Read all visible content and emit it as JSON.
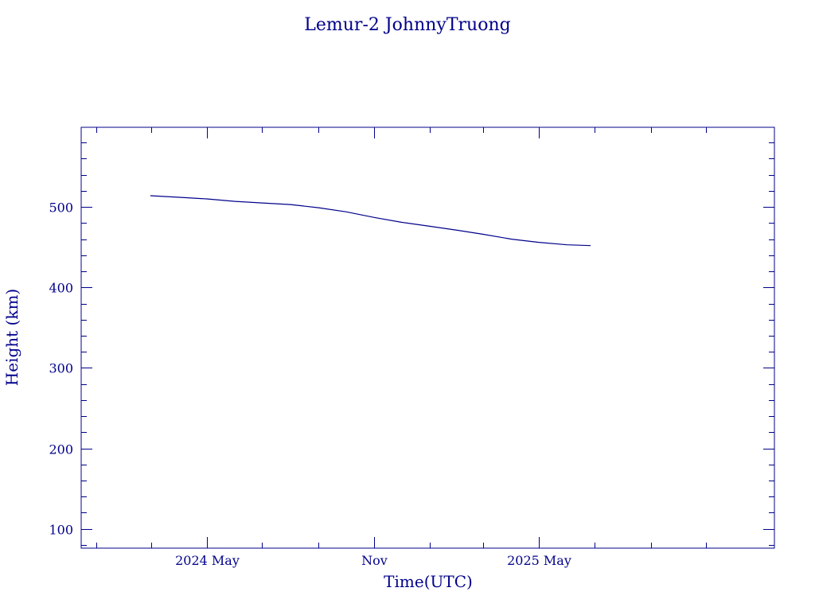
{
  "chart_data": {
    "type": "line",
    "title": "Lemur-2 JohnnyTruong",
    "xlabel": "Time(UTC)",
    "ylabel": "Height (km)",
    "x_axis": {
      "kind": "date",
      "range": [
        "2023-12-15",
        "2026-01-15"
      ],
      "ticks": [
        {
          "date": "2024-05-01",
          "label": "2024 May"
        },
        {
          "date": "2024-11-01",
          "label": "Nov"
        },
        {
          "date": "2025-05-01",
          "label": "2025 May"
        }
      ],
      "minor_tick_dates": [
        "2024-01-01",
        "2024-03-01",
        "2024-07-01",
        "2024-09-01",
        "2025-01-01",
        "2025-03-01",
        "2025-07-01",
        "2025-09-01",
        "2025-11-01"
      ]
    },
    "y_axis": {
      "range": [
        76,
        599
      ],
      "ticks": [
        100,
        200,
        300,
        400,
        500
      ],
      "minor_step": 20
    },
    "grid": false,
    "series": [
      {
        "color": "#00008b",
        "points": [
          [
            "2024-02-29",
            514
          ],
          [
            "2024-04-01",
            512
          ],
          [
            "2024-05-01",
            510
          ],
          [
            "2024-06-01",
            507
          ],
          [
            "2024-07-01",
            505
          ],
          [
            "2024-08-01",
            503
          ],
          [
            "2024-09-01",
            499
          ],
          [
            "2024-10-01",
            494
          ],
          [
            "2024-11-01",
            487
          ],
          [
            "2024-12-01",
            481
          ],
          [
            "2025-01-01",
            476
          ],
          [
            "2025-02-01",
            471
          ],
          [
            "2025-03-01",
            466
          ],
          [
            "2025-04-01",
            460
          ],
          [
            "2025-05-01",
            456
          ],
          [
            "2025-06-01",
            453
          ],
          [
            "2025-06-27",
            452
          ]
        ]
      }
    ]
  },
  "colors": {
    "ink": "#00008b",
    "background": "#ffffff"
  }
}
